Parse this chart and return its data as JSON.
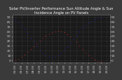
{
  "title": "Solar PV/Inverter Performance Sun Altitude Angle & Sun Incidence Angle on PV Panels",
  "bg_color": "#1a1a1a",
  "plot_bg_color": "#1a1a1a",
  "fig_bg_color": "#3a3a3a",
  "grid_color": "#555555",
  "title_color": "#ffffff",
  "tick_color": "#cccccc",
  "ylim": [
    -5,
    95
  ],
  "yticks": [
    0,
    10,
    20,
    30,
    40,
    50,
    60,
    70,
    80,
    90
  ],
  "xlim": [
    4.5,
    20.5
  ],
  "xticks": [
    5,
    6,
    7,
    8,
    9,
    10,
    11,
    12,
    13,
    14,
    15,
    16,
    17,
    18,
    19,
    20
  ],
  "red_x": [
    5.0,
    5.5,
    6.0,
    6.5,
    7.0,
    7.5,
    8.0,
    8.5,
    9.0,
    9.5,
    10.0,
    10.5,
    11.0,
    11.5,
    12.0,
    12.5,
    13.0,
    13.5,
    14.0,
    14.5,
    15.0,
    15.5,
    16.0,
    16.5,
    17.0,
    17.5,
    18.0,
    18.5,
    19.0
  ],
  "red_y": [
    0,
    3,
    7,
    12,
    17,
    23,
    29,
    35,
    41,
    46,
    51,
    55,
    58,
    60,
    61,
    60,
    58,
    54,
    49,
    43,
    37,
    30,
    23,
    16,
    10,
    5,
    1,
    -2,
    -3
  ],
  "blue_x": [
    5.0,
    5.5,
    6.0,
    6.5,
    7.0,
    7.5,
    8.0,
    8.5,
    9.0,
    9.5,
    10.0,
    10.5,
    11.0,
    11.5,
    12.0,
    12.5,
    13.0,
    13.5,
    14.0,
    14.5,
    15.0,
    15.5,
    16.0,
    16.5,
    17.0,
    17.5,
    18.0,
    18.5,
    19.0
  ],
  "blue_y": [
    85,
    78,
    72,
    65,
    56,
    47,
    38,
    29,
    21,
    15,
    10,
    7,
    6,
    7,
    10,
    15,
    21,
    28,
    36,
    44,
    52,
    60,
    67,
    73,
    78,
    82,
    85,
    87,
    88
  ],
  "red_color": "#dd2222",
  "blue_color": "#2222dd",
  "dot_size": 1.5,
  "title_fontsize": 3.8,
  "tick_fontsize": 3.2,
  "right_yticks": [
    0,
    10,
    20,
    30,
    40,
    50,
    60,
    70,
    80,
    90
  ]
}
